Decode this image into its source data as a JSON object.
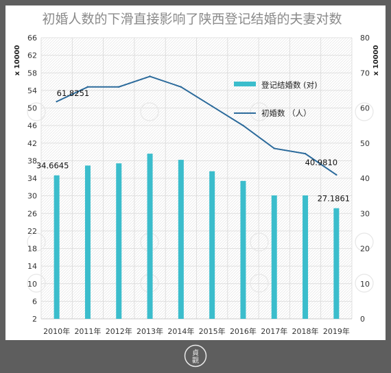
{
  "chart_data": {
    "type": "bar+line",
    "title": "初婚人数的下滑直接影响了陕西登记结婚的夫妻对数",
    "categories": [
      "2010年",
      "2011年",
      "2012年",
      "2013年",
      "2014年",
      "2015年",
      "2016年",
      "2017年",
      "2018年",
      "2019年"
    ],
    "left_axis": {
      "label": "x 10000",
      "ylim": [
        2,
        66
      ],
      "ticks": [
        2,
        6,
        10,
        14,
        18,
        22,
        26,
        30,
        34,
        38,
        42,
        46,
        50,
        54,
        58,
        62,
        66
      ]
    },
    "right_axis": {
      "label": "x 10000",
      "ylim": [
        0,
        80
      ],
      "ticks": [
        0,
        10,
        20,
        30,
        40,
        50,
        60,
        70,
        80
      ]
    },
    "series": [
      {
        "name": "登记结婚数 (对)",
        "type": "bar",
        "axis": "left",
        "color": "#3bbdcc",
        "values": [
          34.6645,
          36.9,
          37.4,
          39.6,
          38.2,
          35.6,
          33.4,
          30.1,
          30.1,
          27.1861
        ]
      },
      {
        "name": "初婚数 （人）",
        "type": "line",
        "axis": "right",
        "color": "#2b6a9b",
        "values": [
          61.8251,
          66.0,
          66.0,
          69.0,
          66.0,
          60.5,
          55.0,
          48.5,
          47.0,
          40.981
        ]
      }
    ],
    "data_labels": [
      {
        "series": 0,
        "index": 0,
        "text": "34.6645"
      },
      {
        "series": 0,
        "index": 9,
        "text": "27.1861"
      },
      {
        "series": 1,
        "index": 0,
        "text": "61.8251"
      },
      {
        "series": 1,
        "index": 9,
        "text": "40.9810"
      }
    ],
    "legend_position": "right-middle",
    "grid": true
  },
  "footer": {
    "logo_char_top": "貞",
    "logo_char_bottom": "觀"
  }
}
